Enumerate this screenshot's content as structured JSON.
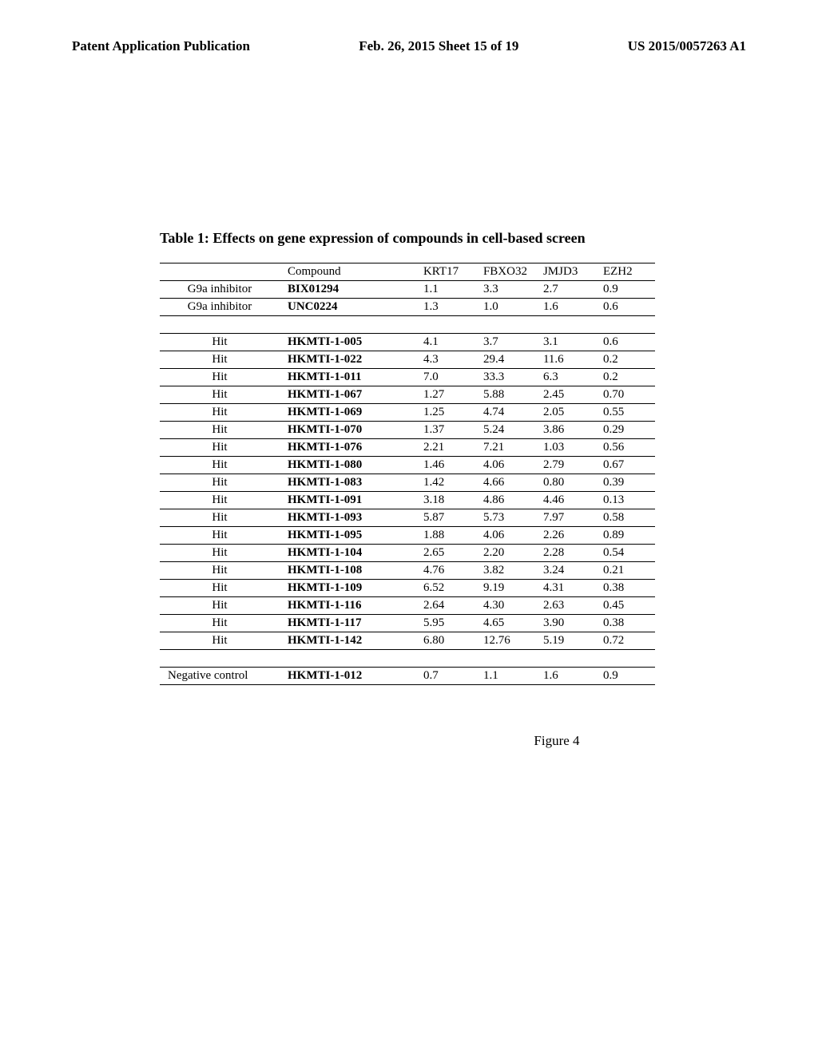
{
  "header": {
    "left": "Patent Application Publication",
    "center": "Feb. 26, 2015  Sheet 15 of 19",
    "right": "US 2015/0057263 A1"
  },
  "table": {
    "title": "Table 1: Effects on gene expression of compounds in cell-based screen",
    "columns": [
      "",
      "Compound",
      "KRT17",
      "FBXO32",
      "JMJD3",
      "EZH2"
    ],
    "rows": [
      {
        "label": "G9a inhibitor",
        "compound": "BIX01294",
        "krt17": "1.1",
        "fbxo32": "3.3",
        "jmjd3": "2.7",
        "ezh2": "0.9"
      },
      {
        "label": "G9a inhibitor",
        "compound": "UNC0224",
        "krt17": "1.3",
        "fbxo32": "1.0",
        "jmjd3": "1.6",
        "ezh2": "0.6"
      }
    ],
    "hits": [
      {
        "label": "Hit",
        "compound": "HKMTI-1-005",
        "krt17": "4.1",
        "fbxo32": "3.7",
        "jmjd3": "3.1",
        "ezh2": "0.6"
      },
      {
        "label": "Hit",
        "compound": "HKMTI-1-022",
        "krt17": "4.3",
        "fbxo32": "29.4",
        "jmjd3": "11.6",
        "ezh2": "0.2"
      },
      {
        "label": "Hit",
        "compound": "HKMTI-1-011",
        "krt17": "7.0",
        "fbxo32": "33.3",
        "jmjd3": "6.3",
        "ezh2": "0.2"
      },
      {
        "label": "Hit",
        "compound": "HKMTI-1-067",
        "krt17": "1.27",
        "fbxo32": "5.88",
        "jmjd3": "2.45",
        "ezh2": "0.70"
      },
      {
        "label": "Hit",
        "compound": "HKMTI-1-069",
        "krt17": "1.25",
        "fbxo32": "4.74",
        "jmjd3": "2.05",
        "ezh2": "0.55"
      },
      {
        "label": "Hit",
        "compound": "HKMTI-1-070",
        "krt17": "1.37",
        "fbxo32": "5.24",
        "jmjd3": "3.86",
        "ezh2": "0.29"
      },
      {
        "label": "Hit",
        "compound": "HKMTI-1-076",
        "krt17": "2.21",
        "fbxo32": "7.21",
        "jmjd3": "1.03",
        "ezh2": "0.56"
      },
      {
        "label": "Hit",
        "compound": "HKMTI-1-080",
        "krt17": "1.46",
        "fbxo32": "4.06",
        "jmjd3": "2.79",
        "ezh2": "0.67"
      },
      {
        "label": "Hit",
        "compound": "HKMTI-1-083",
        "krt17": "1.42",
        "fbxo32": "4.66",
        "jmjd3": "0.80",
        "ezh2": "0.39"
      },
      {
        "label": "Hit",
        "compound": "HKMTI-1-091",
        "krt17": "3.18",
        "fbxo32": "4.86",
        "jmjd3": "4.46",
        "ezh2": "0.13"
      },
      {
        "label": "Hit",
        "compound": "HKMTI-1-093",
        "krt17": "5.87",
        "fbxo32": "5.73",
        "jmjd3": "7.97",
        "ezh2": "0.58"
      },
      {
        "label": "Hit",
        "compound": "HKMTI-1-095",
        "krt17": "1.88",
        "fbxo32": "4.06",
        "jmjd3": "2.26",
        "ezh2": "0.89"
      },
      {
        "label": "Hit",
        "compound": "HKMTI-1-104",
        "krt17": "2.65",
        "fbxo32": "2.20",
        "jmjd3": "2.28",
        "ezh2": "0.54"
      },
      {
        "label": "Hit",
        "compound": "HKMTI-1-108",
        "krt17": "4.76",
        "fbxo32": "3.82",
        "jmjd3": "3.24",
        "ezh2": "0.21"
      },
      {
        "label": "Hit",
        "compound": "HKMTI-1-109",
        "krt17": "6.52",
        "fbxo32": "9.19",
        "jmjd3": "4.31",
        "ezh2": "0.38"
      },
      {
        "label": "Hit",
        "compound": "HKMTI-1-116",
        "krt17": "2.64",
        "fbxo32": "4.30",
        "jmjd3": "2.63",
        "ezh2": "0.45"
      },
      {
        "label": "Hit",
        "compound": "HKMTI-1-117",
        "krt17": "5.95",
        "fbxo32": "4.65",
        "jmjd3": "3.90",
        "ezh2": "0.38"
      },
      {
        "label": "Hit",
        "compound": "HKMTI-1-142",
        "krt17": "6.80",
        "fbxo32": "12.76",
        "jmjd3": "5.19",
        "ezh2": "0.72"
      }
    ],
    "negative": [
      {
        "label": "Negative control",
        "compound": "HKMTI-1-012",
        "krt17": "0.7",
        "fbxo32": "1.1",
        "jmjd3": "1.6",
        "ezh2": "0.9"
      }
    ]
  },
  "figure_label": "Figure 4"
}
